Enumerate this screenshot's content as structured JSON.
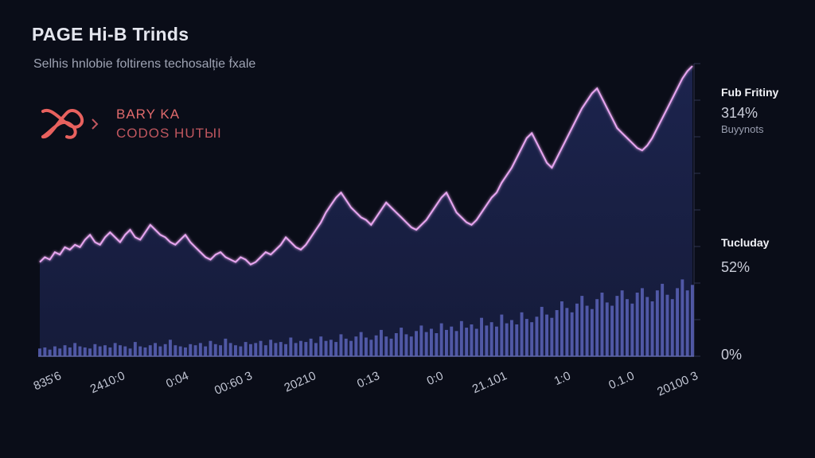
{
  "header": {
    "title": "PAGE Hi-B Trinds",
    "subtitle": "Selhis hnlobie foltirens techosalție ḟxale"
  },
  "brand": {
    "line1": "BARY KA",
    "line2": "CODOS HUTЫI",
    "logo_color": "#e8615e"
  },
  "right_panel": {
    "top_label": "Fub Fritiny",
    "top_value": "314%",
    "top_caption": "Buyynots",
    "mid_label": "Tucluday",
    "mid_value": "52%",
    "bottom_value": "0%"
  },
  "chart_data": {
    "type": "line",
    "title": "PAGE Hi-B Trinds",
    "x_tick_labels": [
      "835'6",
      "2410:0",
      "0:04",
      "00:60 3",
      "20210",
      "0:13",
      "0:0",
      "21.101",
      "1:0",
      "0.1.0",
      "20100 3"
    ],
    "ylim": [
      0,
      100
    ],
    "line_color": "#e8a6f0",
    "bar_color": "#5a63b8",
    "series": [
      {
        "name": "trend",
        "values": [
          20,
          22,
          21,
          24,
          23,
          26,
          25,
          27,
          26,
          29,
          31,
          28,
          27,
          30,
          32,
          30,
          28,
          31,
          33,
          30,
          29,
          32,
          35,
          33,
          31,
          30,
          28,
          27,
          29,
          31,
          28,
          26,
          24,
          22,
          21,
          23,
          24,
          22,
          21,
          20,
          22,
          21,
          19,
          20,
          22,
          24,
          23,
          25,
          27,
          30,
          28,
          26,
          25,
          27,
          30,
          33,
          36,
          40,
          43,
          46,
          48,
          45,
          42,
          40,
          38,
          37,
          35,
          38,
          41,
          44,
          42,
          40,
          38,
          36,
          34,
          33,
          35,
          37,
          40,
          43,
          46,
          48,
          44,
          40,
          38,
          36,
          35,
          37,
          40,
          43,
          46,
          48,
          52,
          55,
          58,
          62,
          66,
          70,
          72,
          68,
          64,
          60,
          58,
          62,
          66,
          70,
          74,
          78,
          82,
          85,
          88,
          90,
          86,
          82,
          78,
          74,
          72,
          70,
          68,
          66,
          65,
          67,
          70,
          74,
          78,
          82,
          86,
          90,
          94,
          97,
          99
        ]
      },
      {
        "name": "volume",
        "values": [
          7,
          8,
          6,
          9,
          7,
          10,
          8,
          12,
          9,
          8,
          7,
          11,
          9,
          10,
          8,
          12,
          10,
          9,
          7,
          13,
          9,
          8,
          10,
          12,
          9,
          11,
          15,
          10,
          9,
          8,
          11,
          10,
          12,
          9,
          14,
          11,
          10,
          16,
          12,
          10,
          9,
          13,
          11,
          12,
          14,
          10,
          15,
          12,
          13,
          11,
          17,
          12,
          14,
          13,
          16,
          12,
          18,
          14,
          15,
          13,
          20,
          16,
          14,
          18,
          22,
          17,
          15,
          19,
          24,
          18,
          16,
          21,
          26,
          20,
          18,
          23,
          28,
          22,
          25,
          21,
          30,
          24,
          27,
          23,
          32,
          26,
          29,
          25,
          35,
          28,
          31,
          27,
          38,
          30,
          33,
          29,
          40,
          34,
          31,
          36,
          45,
          38,
          35,
          42,
          50,
          44,
          40,
          48,
          55,
          46,
          43,
          52,
          58,
          49,
          46,
          55,
          60,
          52,
          48,
          58,
          62,
          54,
          50,
          60,
          66,
          56,
          52,
          62,
          70,
          60,
          65
        ]
      }
    ],
    "ticks_right": [
      "0%",
      "52%",
      "314%"
    ]
  }
}
